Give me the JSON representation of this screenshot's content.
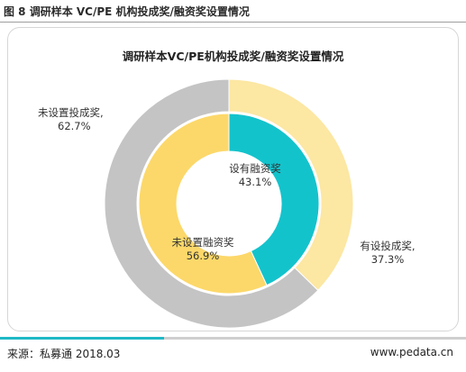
{
  "figure_label": "图 8 调研样本 VC/PE 机构投成奖/融资奖设置情况",
  "footer": {
    "source": "来源：私募通 2018.03",
    "url": "www.pedata.cn"
  },
  "chart_data": {
    "type": "pie",
    "title": "调研样本VC/PE机构投成奖/融资奖设置情况",
    "rings": [
      {
        "ring": "outer",
        "slices": [
          {
            "label": "有设投成奖,",
            "pct_text": "37.3%",
            "value": 37.3,
            "color": "#fce7a3"
          },
          {
            "label": "未设置投成奖,",
            "pct_text": "62.7%",
            "value": 62.7,
            "color": "#c4c4c4"
          }
        ]
      },
      {
        "ring": "inner",
        "slices": [
          {
            "label": "设有融资奖",
            "pct_text": "43.1%",
            "value": 43.1,
            "color": "#13c3cc"
          },
          {
            "label": "未设置融资奖",
            "pct_text": "56.9%",
            "value": 56.9,
            "color": "#fcd86a"
          }
        ]
      }
    ]
  }
}
